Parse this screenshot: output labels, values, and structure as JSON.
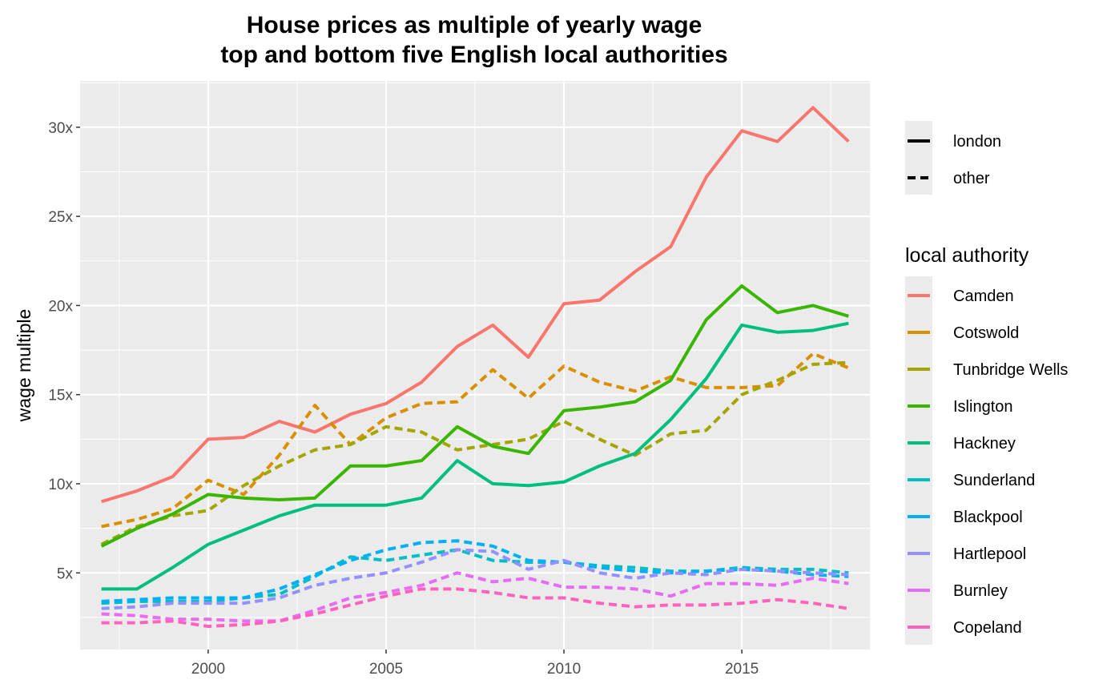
{
  "chart_data": {
    "type": "line",
    "title": [
      "House prices as multiple of yearly wage",
      "top and bottom five English local authorities"
    ],
    "xlabel": "",
    "ylabel": "wage multiple",
    "xlim": [
      1996.4,
      2018.6
    ],
    "ylim": [
      0.7,
      32.6
    ],
    "x_ticks": [
      2000,
      2005,
      2010,
      2015
    ],
    "x_tick_labels": [
      "2000",
      "2005",
      "2010",
      "2015"
    ],
    "y_ticks": [
      5,
      10,
      15,
      20,
      25,
      30
    ],
    "y_tick_labels": [
      "5x",
      "10x",
      "15x",
      "20x",
      "25x",
      "30x"
    ],
    "x": [
      1997,
      1998,
      1999,
      2000,
      2001,
      2002,
      2003,
      2004,
      2005,
      2006,
      2007,
      2008,
      2009,
      2010,
      2011,
      2012,
      2013,
      2014,
      2015,
      2016,
      2017,
      2018
    ],
    "linetype_legend": {
      "items": [
        {
          "label": "london",
          "dash": "solid"
        },
        {
          "label": "other",
          "dash": "dashed"
        }
      ]
    },
    "color_legend_title": "local authority",
    "series": [
      {
        "name": "Camden",
        "color": "#F8766D",
        "group": "london",
        "values": [
          9.0,
          9.6,
          10.4,
          12.5,
          12.6,
          13.5,
          12.9,
          13.9,
          14.5,
          15.7,
          17.7,
          18.9,
          17.1,
          20.1,
          20.3,
          21.9,
          23.3,
          27.2,
          29.8,
          29.2,
          31.1,
          29.2
        ]
      },
      {
        "name": "Cotswold",
        "color": "#D89000",
        "group": "other",
        "values": [
          7.6,
          8.0,
          8.6,
          10.2,
          9.4,
          11.6,
          14.4,
          12.2,
          13.7,
          14.5,
          14.6,
          16.4,
          14.8,
          16.6,
          15.7,
          15.2,
          16.0,
          15.4,
          15.4,
          15.5,
          17.3,
          16.5
        ]
      },
      {
        "name": "Tunbridge Wells",
        "color": "#A3A500",
        "group": "other",
        "values": [
          6.6,
          7.6,
          8.2,
          8.5,
          9.9,
          11.0,
          11.9,
          12.2,
          13.2,
          12.9,
          11.9,
          12.2,
          12.5,
          13.5,
          12.5,
          11.6,
          12.8,
          13.0,
          15.0,
          15.8,
          16.7,
          16.8
        ]
      },
      {
        "name": "Islington",
        "color": "#39B600",
        "group": "london",
        "values": [
          6.5,
          7.5,
          8.3,
          9.4,
          9.2,
          9.1,
          9.2,
          11.0,
          11.0,
          11.3,
          13.2,
          12.1,
          11.7,
          14.1,
          14.3,
          14.6,
          15.8,
          19.2,
          21.1,
          19.6,
          20.0,
          19.4
        ]
      },
      {
        "name": "Hackney",
        "color": "#00BF7D",
        "group": "london",
        "values": [
          4.1,
          4.1,
          5.3,
          6.6,
          7.4,
          8.2,
          8.8,
          8.8,
          8.8,
          9.2,
          11.3,
          10.0,
          9.9,
          10.1,
          11.0,
          11.7,
          13.6,
          15.9,
          18.9,
          18.5,
          18.6,
          19.0
        ]
      },
      {
        "name": "Sunderland",
        "color": "#00BFC4",
        "group": "other",
        "values": [
          3.3,
          3.4,
          3.4,
          3.4,
          3.6,
          3.8,
          4.8,
          5.9,
          5.7,
          6.0,
          6.3,
          5.7,
          5.6,
          5.6,
          5.4,
          5.3,
          5.1,
          5.1,
          5.3,
          5.2,
          5.2,
          5.0
        ]
      },
      {
        "name": "Blackpool",
        "color": "#00B0F6",
        "group": "other",
        "values": [
          3.4,
          3.5,
          3.6,
          3.6,
          3.6,
          4.1,
          4.9,
          5.7,
          6.3,
          6.7,
          6.8,
          6.5,
          5.7,
          5.6,
          5.3,
          5.1,
          5.0,
          5.1,
          5.2,
          5.1,
          4.9,
          4.8
        ]
      },
      {
        "name": "Hartlepool",
        "color": "#9590FF",
        "group": "other",
        "values": [
          3.0,
          3.1,
          3.3,
          3.3,
          3.3,
          3.6,
          4.3,
          4.7,
          5.0,
          5.6,
          6.3,
          6.2,
          5.2,
          5.7,
          5.0,
          4.7,
          5.0,
          4.9,
          5.2,
          5.1,
          5.0,
          4.9
        ]
      },
      {
        "name": "Burnley",
        "color": "#E76BF3",
        "group": "other",
        "values": [
          2.7,
          2.6,
          2.4,
          2.4,
          2.3,
          2.3,
          2.9,
          3.6,
          3.9,
          4.3,
          5.0,
          4.5,
          4.7,
          4.2,
          4.2,
          4.1,
          3.7,
          4.4,
          4.4,
          4.3,
          4.7,
          4.4
        ]
      },
      {
        "name": "Copeland",
        "color": "#FF62BC",
        "group": "other",
        "values": [
          2.2,
          2.2,
          2.3,
          2.0,
          2.1,
          2.3,
          2.7,
          3.2,
          3.7,
          4.1,
          4.1,
          3.9,
          3.6,
          3.6,
          3.3,
          3.1,
          3.2,
          3.2,
          3.3,
          3.5,
          3.3,
          3.0
        ]
      }
    ]
  }
}
